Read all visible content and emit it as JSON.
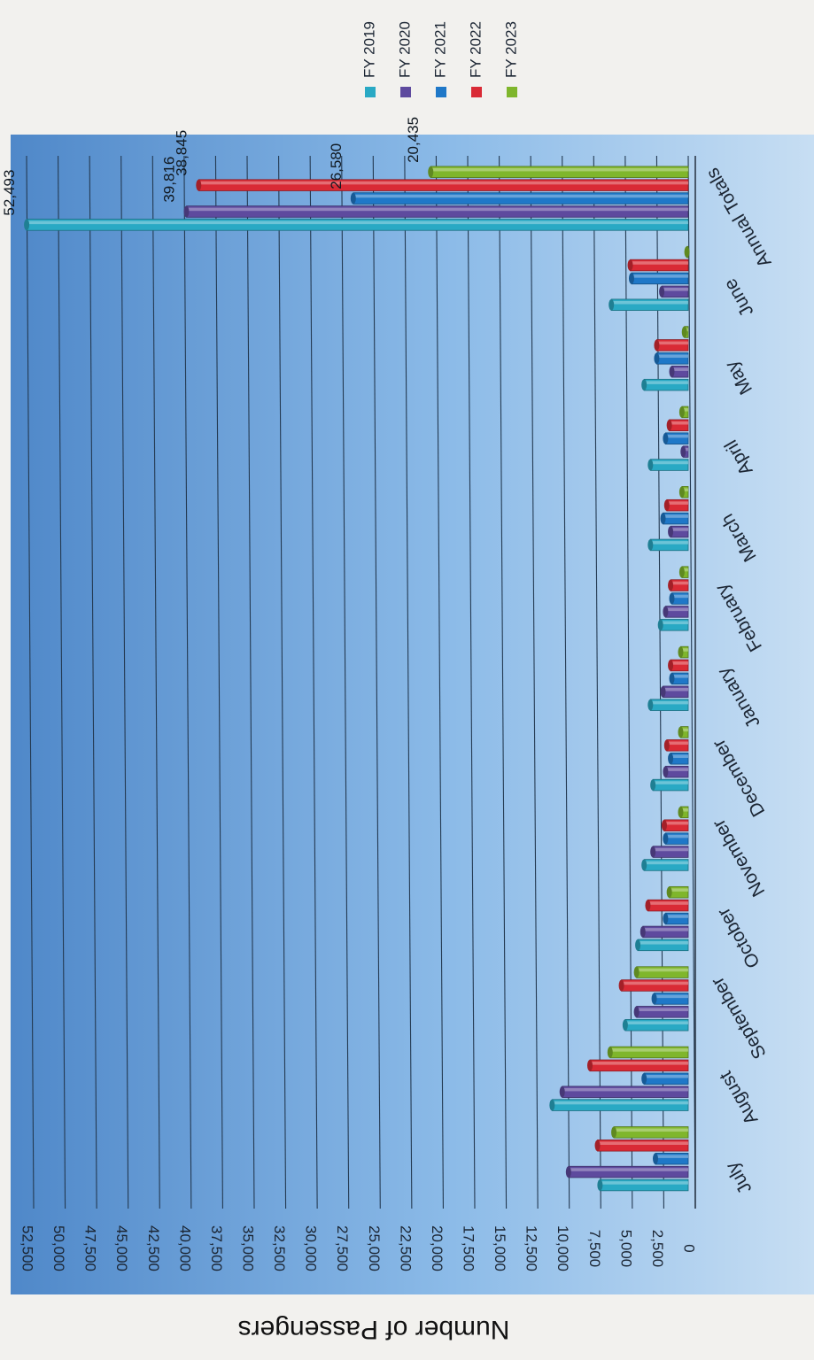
{
  "chart_data": {
    "type": "bar",
    "orientation": "horizontal (page rotated 90°)",
    "ylabel": "Number of Passengers",
    "ylim": [
      0,
      52500
    ],
    "yticks": [
      0,
      2500,
      5000,
      7500,
      10000,
      12500,
      15000,
      17500,
      20000,
      22500,
      25000,
      27500,
      30000,
      32500,
      35000,
      37500,
      40000,
      42500,
      45000,
      47500,
      50000,
      52500
    ],
    "ytick_labels": [
      "0",
      "2,500",
      "5,000",
      "7,500",
      "10,000",
      "12,500",
      "15,000",
      "17,500",
      "20,000",
      "22,500",
      "25,000",
      "27,500",
      "30,000",
      "32,500",
      "35,000",
      "37,500",
      "40,000",
      "42,500",
      "45,000",
      "47,500",
      "50,000",
      "52,500"
    ],
    "categories": [
      "July",
      "August",
      "September",
      "October",
      "November",
      "December",
      "January",
      "February",
      "March",
      "April",
      "May",
      "June",
      "Annual Totals"
    ],
    "series": [
      {
        "name": "FY 2019",
        "color": "#29a9c4",
        "values": [
          7000,
          10800,
          5000,
          4000,
          3500,
          2800,
          3000,
          2200,
          3000,
          3000,
          3500,
          6100,
          52493
        ]
      },
      {
        "name": "FY 2020",
        "color": "#5e4a9e",
        "values": [
          9500,
          10000,
          4100,
          3600,
          2800,
          1800,
          2000,
          1800,
          1400,
          400,
          1300,
          2100,
          39816
        ]
      },
      {
        "name": "FY 2021",
        "color": "#1f78c8",
        "values": [
          2600,
          3500,
          2700,
          1800,
          1800,
          1400,
          1300,
          1300,
          2000,
          1800,
          2500,
          4500,
          26580
        ]
      },
      {
        "name": "FY 2022",
        "color": "#d92a35",
        "values": [
          7200,
          7800,
          5300,
          3200,
          1900,
          1700,
          1400,
          1400,
          1700,
          1500,
          2500,
          4600,
          38845
        ]
      },
      {
        "name": "FY 2023",
        "color": "#7fb62c",
        "values": [
          5900,
          6200,
          4100,
          1500,
          600,
          600,
          600,
          500,
          500,
          500,
          300,
          100,
          20435
        ]
      }
    ],
    "data_labels": [
      {
        "category": "Annual Totals",
        "series": "FY 2019",
        "text": "52,493"
      },
      {
        "category": "Annual Totals",
        "series": "FY 2020",
        "text": "39,816"
      },
      {
        "category": "Annual Totals",
        "series": "FY 2021",
        "text": "26,580"
      },
      {
        "category": "Annual Totals",
        "series": "FY 2022",
        "text": "38,845"
      },
      {
        "category": "Annual Totals",
        "series": "FY 2023",
        "text": "20,435"
      }
    ],
    "legend": [
      "FY 2019",
      "FY 2020",
      "FY 2021",
      "FY 2022",
      "FY 2023"
    ],
    "legend_position": "top",
    "grid": true,
    "background_color": "#6fa5dc"
  }
}
